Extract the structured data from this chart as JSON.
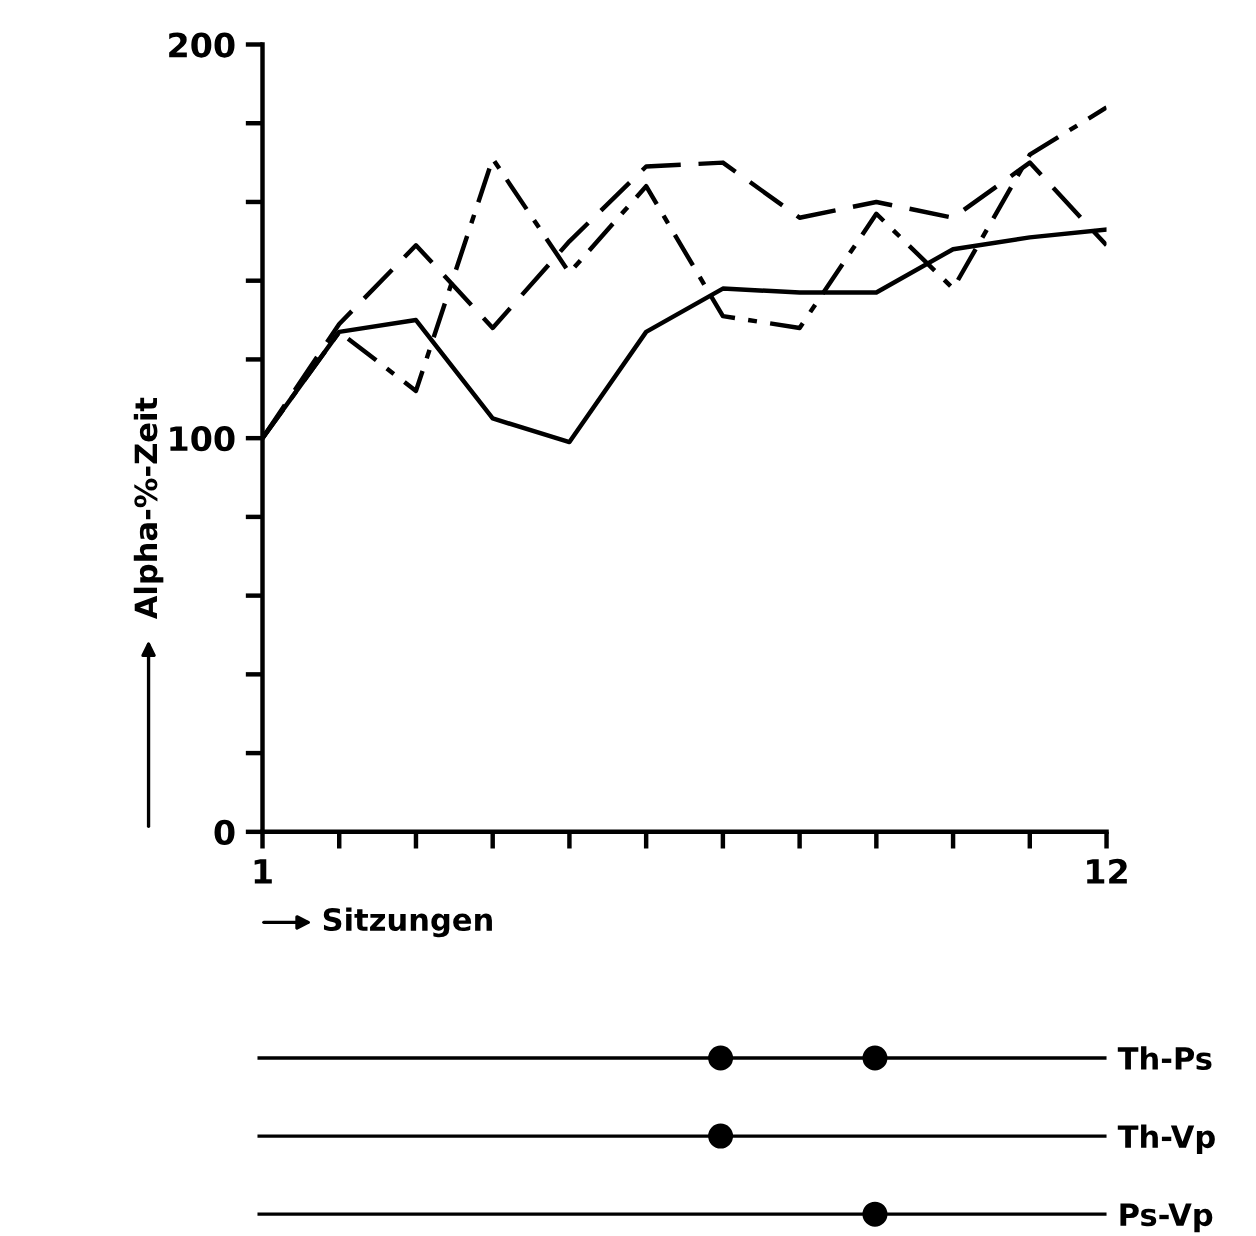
{
  "chart_data": [
    {
      "type": "line",
      "xlabel": "Sitzungen",
      "ylabel": "Alpha-%-Zeit",
      "x": [
        1,
        2,
        3,
        4,
        5,
        6,
        7,
        8,
        9,
        10,
        11,
        12
      ],
      "series": [
        {
          "color": "#000000",
          "line_style": "solid",
          "values": [
            100,
            127,
            130,
            105,
            99,
            127,
            138,
            137,
            137,
            148,
            151,
            153
          ]
        },
        {
          "color": "#000000",
          "line_style": "dashed",
          "values": [
            100,
            129,
            149,
            128,
            150,
            169,
            170,
            156,
            160,
            156,
            170,
            149
          ]
        },
        {
          "color": "#000000",
          "line_style": "dashdot",
          "values": [
            100,
            127,
            112,
            171,
            142,
            164,
            131,
            128,
            157,
            138,
            172,
            184
          ]
        }
      ],
      "xlim": [
        1,
        12
      ],
      "ylim": [
        0,
        200
      ],
      "xticks": [
        1,
        {
          "value": 2,
          "label": null
        },
        {
          "value": 3,
          "label": null
        },
        {
          "value": 4,
          "label": null
        },
        {
          "value": 5,
          "label": null
        },
        {
          "value": 6,
          "label": null
        },
        {
          "value": 7,
          "label": null
        },
        {
          "value": 8,
          "label": null
        },
        {
          "value": 9,
          "label": null
        },
        {
          "value": 10,
          "label": null
        },
        {
          "value": 11,
          "label": null
        },
        12
      ],
      "yticks": [
        0,
        {
          "value": 20,
          "label": null
        },
        {
          "value": 40,
          "label": null
        },
        {
          "value": 60,
          "label": null
        },
        {
          "value": 80,
          "label": null
        },
        100,
        {
          "value": 120,
          "label": null
        },
        {
          "value": 140,
          "label": null
        },
        {
          "value": 160,
          "label": null
        },
        {
          "value": 180,
          "label": null
        },
        200
      ],
      "grid": false,
      "legend": false,
      "marker": "none"
    },
    {
      "type": "scatter",
      "orientation": "horizontal",
      "categories": [
        "Th-Ps",
        "Th-Vp",
        "Ps-Vp"
      ],
      "series": [
        {
          "color": "#000000",
          "values": [
            7,
            7,
            null
          ]
        },
        {
          "color": "#000000",
          "values": [
            9,
            null,
            9
          ]
        }
      ],
      "xlim": [
        1,
        12
      ],
      "tick_labels": "y",
      "grid": "y",
      "legend": false,
      "marker": "circle"
    }
  ]
}
